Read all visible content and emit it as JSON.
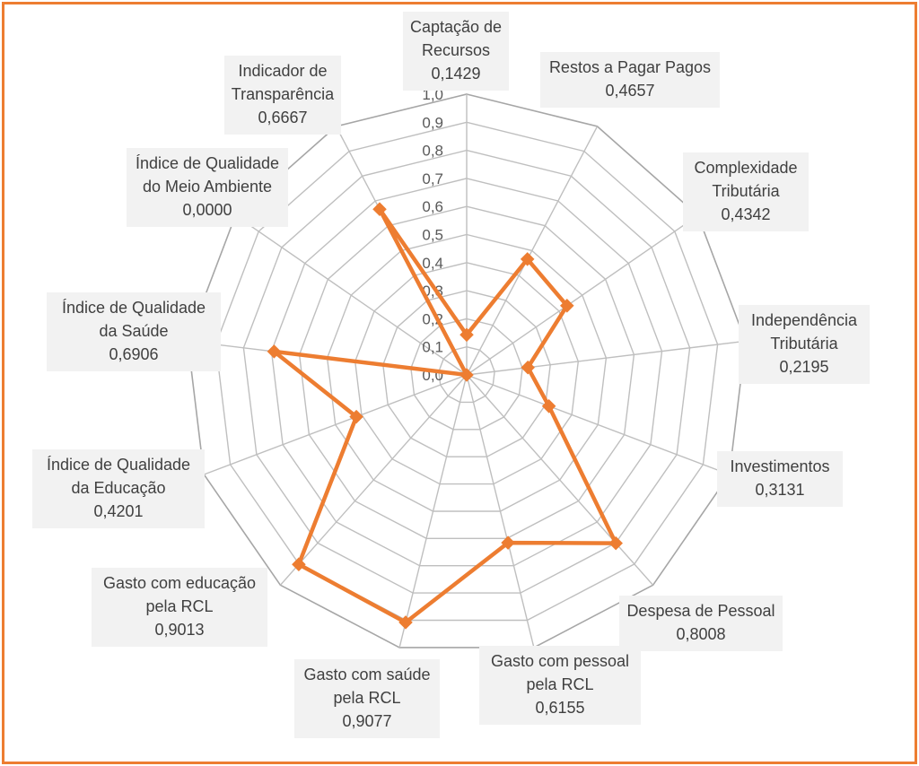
{
  "chart_data": {
    "type": "radar",
    "scale": {
      "min": 0.0,
      "max": 1.0,
      "step": 0.1
    },
    "tick_labels": [
      "0,0",
      "0,1",
      "0,2",
      "0,3",
      "0,4",
      "0,5",
      "0,6",
      "0,7",
      "0,8",
      "0,9",
      "1,0"
    ],
    "grid": true,
    "categories": [
      {
        "lines": [
          "Captação de",
          "Recursos"
        ],
        "value_label": "0,1429"
      },
      {
        "lines": [
          "Restos a Pagar Pagos"
        ],
        "value_label": "0,4657"
      },
      {
        "lines": [
          "Complexidade",
          "Tributária"
        ],
        "value_label": "0,4342"
      },
      {
        "lines": [
          "Independência",
          "Tributária"
        ],
        "value_label": "0,2195"
      },
      {
        "lines": [
          "Investimentos"
        ],
        "value_label": "0,3131"
      },
      {
        "lines": [
          "Despesa de Pessoal"
        ],
        "value_label": "0,8008"
      },
      {
        "lines": [
          "Gasto com pessoal",
          "pela RCL"
        ],
        "value_label": "0,6155"
      },
      {
        "lines": [
          "Gasto com saúde",
          "pela RCL"
        ],
        "value_label": "0,9077"
      },
      {
        "lines": [
          "Gasto com educação",
          "pela RCL"
        ],
        "value_label": "0,9013"
      },
      {
        "lines": [
          "Índice de Qualidade",
          "da Educação"
        ],
        "value_label": "0,4201"
      },
      {
        "lines": [
          "Índice de Qualidade",
          "da Saúde"
        ],
        "value_label": "0,6906"
      },
      {
        "lines": [
          "Índice de Qualidade",
          "do Meio Ambiente"
        ],
        "value_label": "0,0000"
      },
      {
        "lines": [
          "Indicador de",
          "Transparência"
        ],
        "value_label": "0,6667"
      }
    ],
    "series": [
      {
        "values": [
          0.1429,
          0.4657,
          0.4342,
          0.2195,
          0.3131,
          0.8008,
          0.6155,
          0.9077,
          0.9013,
          0.4201,
          0.6906,
          0.0,
          0.6667
        ],
        "color": "#ED7D31"
      }
    ]
  },
  "colors": {
    "frame": "#ED7D31",
    "grid": "#BFBFBF",
    "outer": "#A6A6A6",
    "label_bg": "#F2F2F2",
    "text": "#404040"
  }
}
